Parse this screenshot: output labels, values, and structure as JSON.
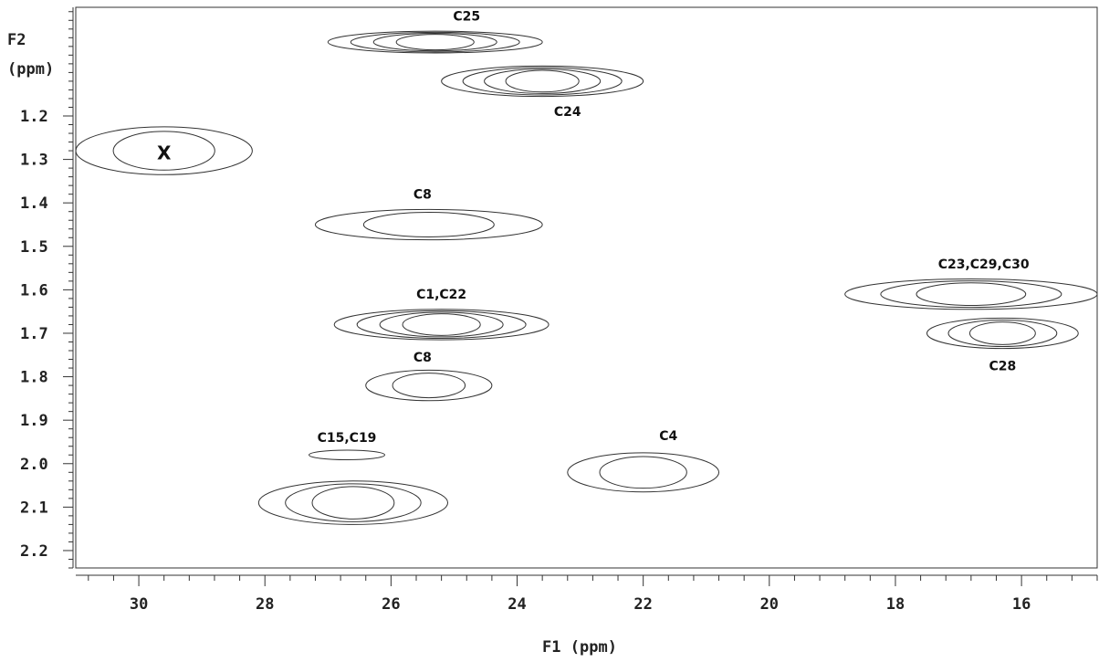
{
  "chart_data": {
    "type": "contour",
    "xlabel": "F1 (ppm)",
    "ylabel_line1": "F2",
    "ylabel_line2": "(ppm)",
    "x_axis_reversed": true,
    "y_axis_reversed": true,
    "xlim": [
      14.8,
      31.0
    ],
    "ylim": [
      0.95,
      2.24
    ],
    "x_ticks": [
      30,
      28,
      26,
      24,
      22,
      20,
      18,
      16
    ],
    "y_ticks": [
      1.2,
      1.3,
      1.4,
      1.5,
      1.6,
      1.7,
      1.8,
      1.9,
      2.0,
      2.1,
      2.2
    ],
    "x_minor_step": 0.4,
    "y_minor_step": 0.02,
    "peaks": [
      {
        "label": "C25",
        "f1": 25.3,
        "f2": 1.03,
        "levels": 4,
        "f1_halfwidth": 1.7,
        "f2_halfwidth": 0.025,
        "label_f1": 24.8,
        "label_f2": 0.97
      },
      {
        "label": "C24",
        "f1": 23.6,
        "f2": 1.12,
        "levels": 4,
        "f1_halfwidth": 1.6,
        "f2_halfwidth": 0.035,
        "label_f1": 23.2,
        "label_f2": 1.19
      },
      {
        "label": "X",
        "f1": 29.6,
        "f2": 1.28,
        "levels": 2,
        "f1_halfwidth": 1.4,
        "f2_halfwidth": 0.055,
        "label_f1": 29.6,
        "label_f2": 1.285
      },
      {
        "label": "C8",
        "f1": 25.4,
        "f2": 1.45,
        "levels": 2,
        "f1_halfwidth": 1.8,
        "f2_halfwidth": 0.035,
        "label_f1": 25.5,
        "label_f2": 1.38
      },
      {
        "label": "C23,C29,C30",
        "f1": 16.8,
        "f2": 1.61,
        "levels": 3,
        "f1_halfwidth": 2.0,
        "f2_halfwidth": 0.035,
        "label_f1": 16.6,
        "label_f2": 1.54
      },
      {
        "label": "C1,C22",
        "f1": 25.2,
        "f2": 1.68,
        "levels": 4,
        "f1_halfwidth": 1.7,
        "f2_halfwidth": 0.035,
        "label_f1": 25.2,
        "label_f2": 1.61
      },
      {
        "label": "C28",
        "f1": 16.3,
        "f2": 1.7,
        "levels": 3,
        "f1_halfwidth": 1.2,
        "f2_halfwidth": 0.035,
        "label_f1": 16.3,
        "label_f2": 1.775
      },
      {
        "label": "C8",
        "f1": 25.4,
        "f2": 1.82,
        "levels": 2,
        "f1_halfwidth": 1.0,
        "f2_halfwidth": 0.035,
        "label_f1": 25.5,
        "label_f2": 1.755
      },
      {
        "label": "C15,C19",
        "f1": 26.7,
        "f2": 1.98,
        "levels": 1,
        "f1_halfwidth": 0.6,
        "f2_halfwidth": 0.011,
        "label_f1": 26.7,
        "label_f2": 1.94
      },
      {
        "label": "C4",
        "f1": 22.0,
        "f2": 2.02,
        "levels": 2,
        "f1_halfwidth": 1.2,
        "f2_halfwidth": 0.045,
        "label_f1": 21.6,
        "label_f2": 1.935
      },
      {
        "label": "",
        "f1": 26.6,
        "f2": 2.09,
        "levels": 3,
        "f1_halfwidth": 1.5,
        "f2_halfwidth": 0.05,
        "label_f1": 26.6,
        "label_f2": 2.09
      }
    ],
    "grid": false,
    "legend": "none",
    "line_color": "#333333"
  }
}
